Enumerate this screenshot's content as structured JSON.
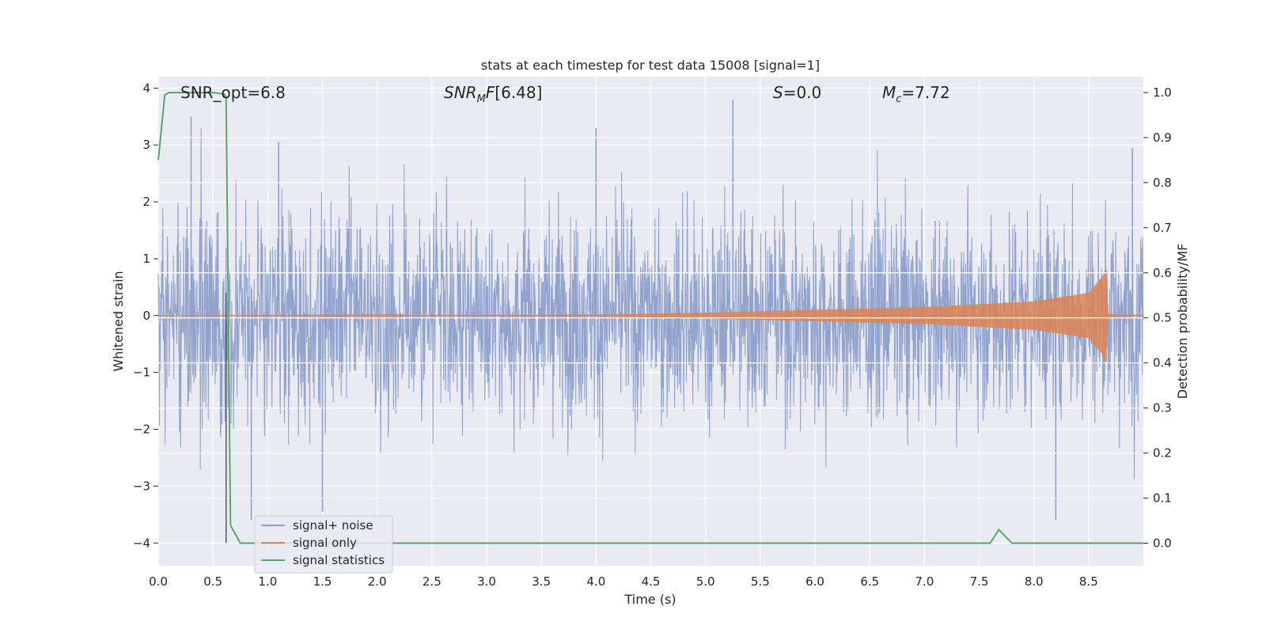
{
  "chart_data": {
    "type": "line",
    "title": "stats at each timestep for test data 15008 [signal=1]",
    "xlabel": "Time (s)",
    "ylabel_left": "Whitened strain",
    "ylabel_right": "Detection probability/MF",
    "xlim": [
      0.0,
      9.0
    ],
    "ylim_left": [
      -4.4,
      4.2
    ],
    "ylim_right": [
      -0.05,
      1.035
    ],
    "xticks": [
      "0.0",
      "0.5",
      "1.0",
      "1.5",
      "2.0",
      "2.5",
      "3.0",
      "3.5",
      "4.0",
      "4.5",
      "5.0",
      "5.5",
      "6.0",
      "6.5",
      "7.0",
      "7.5",
      "8.0",
      "8.5"
    ],
    "yticks_left": [
      "4",
      "3",
      "2",
      "1",
      "0",
      "−1",
      "−2",
      "−3",
      "−4"
    ],
    "yticks_right": [
      "1.0",
      "0.9",
      "0.8",
      "0.7",
      "0.6",
      "0.5",
      "0.4",
      "0.3",
      "0.2",
      "0.1",
      "0.0"
    ],
    "grid": true,
    "legend_position": "lower-left",
    "annotations": {
      "snr_opt": "SNR_opt=6.8",
      "snr_mf": "[6.48]",
      "s": "=0.0",
      "mc": "=7.72"
    },
    "vertical_marker_x": 0.62,
    "series": [
      {
        "name": "signal+ noise",
        "color": "#8da0cb",
        "axis": "left",
        "description": "whitened noisy strain, roughly within ±2.5 with spikes to about +3.8 and −3.6",
        "x_range": [
          0.0,
          9.0
        ],
        "amplitude_band": [
          -2.5,
          2.5
        ],
        "peaks": [
          [
            0.3,
            3.5
          ],
          [
            1.1,
            3.05
          ],
          [
            4.0,
            3.3
          ],
          [
            5.25,
            3.8
          ],
          [
            8.9,
            2.95
          ],
          [
            0.85,
            -3.6
          ],
          [
            8.2,
            -3.6
          ],
          [
            1.5,
            -3.45
          ]
        ]
      },
      {
        "name": "signal only",
        "color": "#dd8452",
        "axis": "left",
        "description": "chirp signal, near zero until about t=4, amplitude growing to about ±0.85 at t≈8.66 then ringing down",
        "envelope": [
          [
            0.0,
            0.0
          ],
          [
            4.0,
            0.02
          ],
          [
            5.0,
            0.05
          ],
          [
            6.0,
            0.1
          ],
          [
            7.0,
            0.15
          ],
          [
            8.0,
            0.25
          ],
          [
            8.5,
            0.4
          ],
          [
            8.63,
            0.7
          ],
          [
            8.66,
            0.85
          ],
          [
            8.68,
            0.03
          ],
          [
            9.0,
            0.01
          ]
        ]
      },
      {
        "name": "signal statistics",
        "color": "#55a868",
        "axis": "right",
        "x": [
          0.0,
          0.06,
          0.1,
          0.2,
          0.3,
          0.4,
          0.5,
          0.6,
          0.62,
          0.66,
          0.75,
          1.0,
          7.5,
          7.6,
          7.68,
          7.8,
          8.0,
          9.0
        ],
        "y": [
          0.85,
          0.995,
          1.0,
          1.0,
          1.0,
          1.0,
          1.0,
          0.997,
          0.99,
          0.04,
          0.0,
          0.0,
          0.0,
          0.0,
          0.03,
          0.0,
          0.0,
          0.0
        ]
      }
    ]
  }
}
